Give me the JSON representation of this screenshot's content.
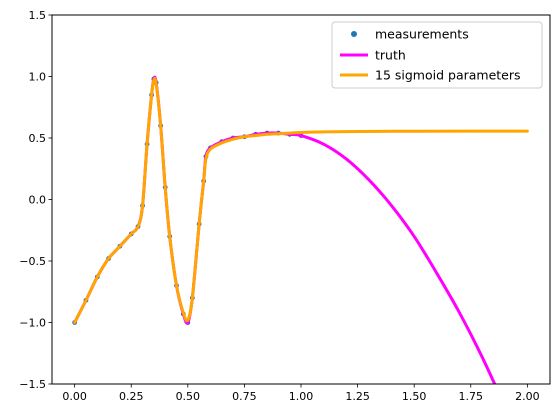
{
  "chart_data": {
    "type": "line",
    "title": "",
    "xlabel": "",
    "ylabel": "",
    "xlim": [
      -0.1,
      2.1
    ],
    "ylim": [
      -1.5,
      1.5
    ],
    "x_ticks": [
      0.0,
      0.25,
      0.5,
      0.75,
      1.0,
      1.25,
      1.5,
      1.75,
      2.0
    ],
    "x_tick_labels": [
      "0.00",
      "0.25",
      "0.50",
      "0.75",
      "1.00",
      "1.25",
      "1.50",
      "1.75",
      "2.00"
    ],
    "y_ticks": [
      -1.5,
      -1.0,
      -0.5,
      0.0,
      0.5,
      1.0,
      1.5
    ],
    "y_tick_labels": [
      "−1.5",
      "−1.0",
      "−0.5",
      "0.0",
      "0.5",
      "1.0",
      "1.5"
    ],
    "grid": false,
    "legend": {
      "placement": "top-right",
      "entries": [
        "measurements",
        "truth",
        "15 sigmoid parameters"
      ]
    },
    "series": [
      {
        "name": "measurements",
        "kind": "scatter",
        "color": "#1f77b4",
        "x": [
          0.0,
          0.05,
          0.1,
          0.15,
          0.2,
          0.25,
          0.28,
          0.3,
          0.32,
          0.34,
          0.35,
          0.36,
          0.38,
          0.4,
          0.42,
          0.45,
          0.48,
          0.5,
          0.52,
          0.55,
          0.57,
          0.58,
          0.6,
          0.65,
          0.7,
          0.75,
          0.8,
          0.85,
          0.9,
          0.95,
          1.0
        ],
        "y": [
          -1.0,
          -0.82,
          -0.63,
          -0.48,
          -0.38,
          -0.28,
          -0.22,
          -0.05,
          0.45,
          0.85,
          0.98,
          0.95,
          0.6,
          0.1,
          -0.3,
          -0.7,
          -0.93,
          -1.0,
          -0.8,
          -0.2,
          0.15,
          0.35,
          0.42,
          0.47,
          0.5,
          0.51,
          0.53,
          0.54,
          0.54,
          0.53,
          0.52
        ]
      },
      {
        "name": "truth",
        "kind": "line",
        "color": "#ff00ff",
        "x": [
          0.0,
          0.05,
          0.1,
          0.15,
          0.2,
          0.25,
          0.28,
          0.3,
          0.32,
          0.34,
          0.35,
          0.36,
          0.38,
          0.4,
          0.42,
          0.45,
          0.48,
          0.5,
          0.52,
          0.55,
          0.57,
          0.58,
          0.6,
          0.65,
          0.7,
          0.75,
          0.8,
          0.85,
          0.9,
          0.95,
          1.0,
          1.1,
          1.2,
          1.3,
          1.4,
          1.5,
          1.6,
          1.7,
          1.8,
          1.9
        ],
        "y": [
          -1.0,
          -0.82,
          -0.63,
          -0.48,
          -0.38,
          -0.28,
          -0.22,
          -0.05,
          0.45,
          0.85,
          0.98,
          0.95,
          0.6,
          0.1,
          -0.3,
          -0.7,
          -0.93,
          -1.0,
          -0.8,
          -0.2,
          0.15,
          0.35,
          0.42,
          0.47,
          0.5,
          0.51,
          0.53,
          0.54,
          0.54,
          0.53,
          0.52,
          0.45,
          0.33,
          0.16,
          -0.05,
          -0.3,
          -0.6,
          -0.92,
          -1.28,
          -1.68
        ]
      },
      {
        "name": "15 sigmoid parameters",
        "kind": "line",
        "color": "#ffa500",
        "x": [
          0.0,
          0.05,
          0.1,
          0.15,
          0.2,
          0.25,
          0.28,
          0.3,
          0.32,
          0.34,
          0.35,
          0.36,
          0.38,
          0.4,
          0.42,
          0.45,
          0.48,
          0.5,
          0.52,
          0.55,
          0.57,
          0.58,
          0.6,
          0.65,
          0.7,
          0.75,
          0.8,
          0.85,
          0.9,
          0.95,
          1.0,
          1.1,
          1.25,
          1.5,
          1.75,
          2.0
        ],
        "y": [
          -1.0,
          -0.82,
          -0.63,
          -0.48,
          -0.38,
          -0.28,
          -0.22,
          -0.05,
          0.45,
          0.85,
          0.97,
          0.94,
          0.6,
          0.1,
          -0.3,
          -0.7,
          -0.92,
          -0.98,
          -0.8,
          -0.2,
          0.15,
          0.33,
          0.41,
          0.46,
          0.49,
          0.51,
          0.52,
          0.53,
          0.535,
          0.54,
          0.545,
          0.55,
          0.553,
          0.555,
          0.556,
          0.556
        ]
      }
    ]
  }
}
